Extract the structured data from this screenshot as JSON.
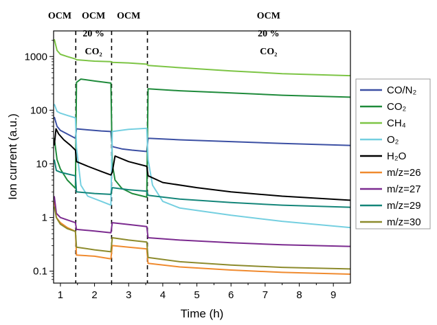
{
  "chart_data": {
    "type": "line",
    "title": "",
    "xlabel": "Time (h)",
    "ylabel": "Ion current (a.u.)",
    "y_scale": "log",
    "xlim": [
      0.8,
      9.5
    ],
    "ylim": [
      0.06,
      3000
    ],
    "x_ticks": [
      1,
      2,
      3,
      4,
      5,
      6,
      7,
      8,
      9
    ],
    "y_ticks": [
      0.1,
      1,
      10,
      100,
      1000
    ],
    "y_tick_labels": [
      "0.1",
      "1",
      "10",
      "100",
      "1000"
    ],
    "phase_boundaries": [
      1.45,
      2.5,
      3.55
    ],
    "phase_labels": [
      {
        "lines": [
          "OCM"
        ],
        "x": 0.98
      },
      {
        "lines": [
          "OCM",
          "20 %",
          "CO₂"
        ],
        "x": 1.97
      },
      {
        "lines": [
          "OCM"
        ],
        "x": 3.0
      },
      {
        "lines": [
          "OCM",
          "20 %",
          "CO₂"
        ],
        "x": 7.1
      }
    ],
    "legend_position": "right",
    "series": [
      {
        "name": "CO/N₂",
        "color": "#3b4fa3",
        "points": [
          [
            0.82,
            75
          ],
          [
            0.9,
            50
          ],
          [
            1.0,
            42
          ],
          [
            1.2,
            36
          ],
          [
            1.44,
            30
          ],
          [
            1.47,
            45
          ],
          [
            1.8,
            43
          ],
          [
            2.2,
            41
          ],
          [
            2.48,
            40
          ],
          [
            2.52,
            21
          ],
          [
            2.8,
            19
          ],
          [
            3.1,
            18
          ],
          [
            3.53,
            17
          ],
          [
            3.57,
            30
          ],
          [
            4.5,
            28
          ],
          [
            6,
            26
          ],
          [
            7.5,
            24
          ],
          [
            9.5,
            22
          ]
        ]
      },
      {
        "name": "CO₂",
        "color": "#1e8a3a",
        "points": [
          [
            0.82,
            30
          ],
          [
            0.9,
            12
          ],
          [
            1.0,
            8
          ],
          [
            1.2,
            5
          ],
          [
            1.44,
            3.5
          ],
          [
            1.47,
            330
          ],
          [
            1.6,
            380
          ],
          [
            2.0,
            350
          ],
          [
            2.48,
            320
          ],
          [
            2.52,
            10
          ],
          [
            2.6,
            5
          ],
          [
            2.8,
            3.5
          ],
          [
            3.1,
            2.8
          ],
          [
            3.53,
            2.4
          ],
          [
            3.57,
            250
          ],
          [
            4.5,
            230
          ],
          [
            6,
            210
          ],
          [
            7.5,
            190
          ],
          [
            9.5,
            175
          ]
        ]
      },
      {
        "name": "CH₄",
        "color": "#7cc444",
        "points": [
          [
            0.82,
            2100
          ],
          [
            0.9,
            1300
          ],
          [
            1.0,
            1100
          ],
          [
            1.2,
            1000
          ],
          [
            1.44,
            900
          ],
          [
            1.47,
            870
          ],
          [
            2.0,
            820
          ],
          [
            2.48,
            800
          ],
          [
            2.52,
            780
          ],
          [
            3.0,
            760
          ],
          [
            3.53,
            720
          ],
          [
            3.57,
            680
          ],
          [
            4.5,
            620
          ],
          [
            6,
            540
          ],
          [
            7.5,
            480
          ],
          [
            9.5,
            440
          ]
        ]
      },
      {
        "name": "O₂",
        "color": "#74cfe0",
        "points": [
          [
            0.82,
            130
          ],
          [
            0.9,
            95
          ],
          [
            1.0,
            88
          ],
          [
            1.2,
            80
          ],
          [
            1.44,
            72
          ],
          [
            1.47,
            20
          ],
          [
            1.6,
            4
          ],
          [
            1.8,
            2.5
          ],
          [
            2.2,
            2.0
          ],
          [
            2.48,
            1.7
          ],
          [
            2.52,
            40
          ],
          [
            3.0,
            44
          ],
          [
            3.53,
            46
          ],
          [
            3.57,
            12
          ],
          [
            3.7,
            4
          ],
          [
            4.0,
            2
          ],
          [
            4.5,
            1.5
          ],
          [
            6,
            1.1
          ],
          [
            7.5,
            0.85
          ],
          [
            9.5,
            0.65
          ]
        ]
      },
      {
        "name": "H₂O",
        "color": "#000000",
        "points": [
          [
            0.82,
            22
          ],
          [
            0.87,
            45
          ],
          [
            0.95,
            36
          ],
          [
            1.1,
            28
          ],
          [
            1.3,
            22
          ],
          [
            1.44,
            18
          ],
          [
            1.47,
            11
          ],
          [
            1.8,
            9
          ],
          [
            2.2,
            7.2
          ],
          [
            2.48,
            6.2
          ],
          [
            2.52,
            7
          ],
          [
            2.6,
            14
          ],
          [
            3.0,
            11
          ],
          [
            3.53,
            9
          ],
          [
            3.57,
            6
          ],
          [
            4.0,
            4.5
          ],
          [
            5,
            3.6
          ],
          [
            6,
            3.0
          ],
          [
            7.5,
            2.5
          ],
          [
            9.5,
            2.1
          ]
        ]
      },
      {
        "name": "m/z=26",
        "color": "#f08a2e",
        "points": [
          [
            0.82,
            2.0
          ],
          [
            0.88,
            1.0
          ],
          [
            1.0,
            0.8
          ],
          [
            1.2,
            0.65
          ],
          [
            1.44,
            0.55
          ],
          [
            1.47,
            0.2
          ],
          [
            2.0,
            0.19
          ],
          [
            2.48,
            0.17
          ],
          [
            2.52,
            0.3
          ],
          [
            3.0,
            0.28
          ],
          [
            3.53,
            0.26
          ],
          [
            3.57,
            0.14
          ],
          [
            4.5,
            0.12
          ],
          [
            6,
            0.105
          ],
          [
            7.5,
            0.095
          ],
          [
            9.5,
            0.088
          ]
        ]
      },
      {
        "name": "m/z=27",
        "color": "#7b2a8f",
        "points": [
          [
            0.82,
            2.5
          ],
          [
            0.88,
            1.2
          ],
          [
            1.0,
            1.0
          ],
          [
            1.2,
            0.9
          ],
          [
            1.44,
            0.8
          ],
          [
            1.47,
            0.6
          ],
          [
            2.0,
            0.56
          ],
          [
            2.48,
            0.52
          ],
          [
            2.52,
            0.8
          ],
          [
            3.0,
            0.74
          ],
          [
            3.53,
            0.68
          ],
          [
            3.57,
            0.42
          ],
          [
            4.5,
            0.38
          ],
          [
            6,
            0.34
          ],
          [
            7.5,
            0.31
          ],
          [
            9.5,
            0.29
          ]
        ]
      },
      {
        "name": "m/z=29",
        "color": "#138579",
        "points": [
          [
            0.82,
            12
          ],
          [
            0.88,
            7.5
          ],
          [
            1.0,
            7
          ],
          [
            1.2,
            6.5
          ],
          [
            1.44,
            6
          ],
          [
            1.47,
            3.0
          ],
          [
            2.0,
            2.8
          ],
          [
            2.48,
            2.7
          ],
          [
            2.52,
            3.6
          ],
          [
            3.0,
            3.3
          ],
          [
            3.53,
            3.1
          ],
          [
            3.57,
            2.6
          ],
          [
            4.5,
            2.2
          ],
          [
            6,
            1.9
          ],
          [
            7.5,
            1.7
          ],
          [
            9.5,
            1.55
          ]
        ]
      },
      {
        "name": "m/z=30",
        "color": "#8c8a2b",
        "points": [
          [
            0.82,
            1.6
          ],
          [
            0.88,
            1.0
          ],
          [
            1.0,
            0.75
          ],
          [
            1.2,
            0.62
          ],
          [
            1.44,
            0.55
          ],
          [
            1.47,
            0.28
          ],
          [
            2.0,
            0.25
          ],
          [
            2.48,
            0.23
          ],
          [
            2.52,
            0.42
          ],
          [
            3.0,
            0.38
          ],
          [
            3.53,
            0.35
          ],
          [
            3.57,
            0.18
          ],
          [
            4.5,
            0.15
          ],
          [
            6,
            0.13
          ],
          [
            7.5,
            0.118
          ],
          [
            9.5,
            0.11
          ]
        ]
      }
    ]
  }
}
